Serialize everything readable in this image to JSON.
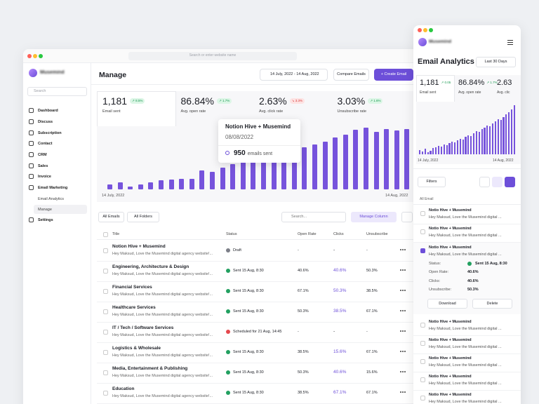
{
  "browser": {
    "address": "Search or enter website name"
  },
  "sidebar": {
    "brand": "Musemind",
    "search": "Search",
    "nav": [
      "Dashboard",
      "Discuss",
      "Subscription",
      "Contact",
      "CRM",
      "Sales",
      "Invoice",
      "Email Marketing",
      "Email Analytics",
      "Manage",
      "Settings"
    ]
  },
  "header": {
    "title": "Manage",
    "date_range": "14 July, 2022 - 14 Aug, 2022",
    "compare": "Compare Emails",
    "create": "+ Create Email"
  },
  "stats": [
    {
      "value": "1,181",
      "change": "↗ 8.5%",
      "label": "Email sent",
      "direction": "up"
    },
    {
      "value": "86.84%",
      "change": "↗ 1.7%",
      "label": "Avg. open rate",
      "direction": "up"
    },
    {
      "value": "2.63%",
      "change": "↘ 3.3%",
      "label": "Avg. click rate",
      "direction": "down"
    },
    {
      "value": "3.03%",
      "change": "↗ 1.6%",
      "label": "Unsubscribe rate",
      "direction": "up"
    }
  ],
  "chart_data": {
    "type": "bar",
    "color": "#7653dc",
    "values": [
      144,
      216,
      96,
      144,
      216,
      288,
      312,
      336,
      336,
      600,
      552,
      672,
      792,
      888,
      950,
      1032,
      1128,
      1176,
      1248,
      1320,
      1392,
      1488,
      1608,
      1704,
      1848,
      1920,
      1800,
      1872,
      1824,
      1872
    ],
    "x_start": "14 July, 2022",
    "x_end": "14 Aug, 2022",
    "tooltip": {
      "title": "Notion Hive + Musemind",
      "date": "08/08/2022",
      "value": "950",
      "unit": "emails sent"
    }
  },
  "toolbar": {
    "filter1": "All Emails",
    "filter2": "All Folders",
    "search": "Search...",
    "manage": "Manage Column"
  },
  "table": {
    "columns": [
      "Title",
      "Status",
      "Open Rate",
      "Clicks",
      "Unsubscribe"
    ],
    "rows": [
      {
        "title": "Notion Hive + Musemind",
        "desc": "Hey Maksud, Love the Musemind digital agency website!...",
        "status": "Draft",
        "kind": "draft",
        "open": "-",
        "clicks": "-",
        "unsub": "-"
      },
      {
        "title": "Engineering, Architecture & Design",
        "desc": "Hey Maksud, Love the Musemind digital agency website!...",
        "status": "Sent 15 Aug, 8:30",
        "kind": "sent",
        "open": "40.6%",
        "clicks": "40.6%",
        "unsub": "50.3%"
      },
      {
        "title": "Financial Services",
        "desc": "Hey Maksud, Love the Musemind digital agency website!...",
        "status": "Sent 15 Aug, 8:30",
        "kind": "sent",
        "open": "67.1%",
        "clicks": "50.3%",
        "unsub": "38.5%"
      },
      {
        "title": "Healthcare Services",
        "desc": "Hey Maksud, Love the Musemind digital agency website!...",
        "status": "Sent 15 Aug, 8:30",
        "kind": "sent",
        "open": "50.3%",
        "clicks": "38.5%",
        "unsub": "67.1%"
      },
      {
        "title": "IT / Tech / Software Services",
        "desc": "Hey Maksud, Love the Musemind digital agency website!...",
        "status": "Scheduled for 21 Aug, 14:45",
        "kind": "scheduled",
        "open": "-",
        "clicks": "-",
        "unsub": "-"
      },
      {
        "title": "Logistics & Wholesale",
        "desc": "Hey Maksud, Love the Musemind digital agency website!...",
        "status": "Sent 15 Aug, 8:30",
        "kind": "sent",
        "open": "38.5%",
        "clicks": "15.6%",
        "unsub": "67.1%"
      },
      {
        "title": "Media, Entertainment & Publishing",
        "desc": "Hey Maksud, Love the Musemind digital agency website!...",
        "status": "Sent 15 Aug, 8:30",
        "kind": "sent",
        "open": "50.3%",
        "clicks": "40.6%",
        "unsub": "15.6%"
      },
      {
        "title": "Education",
        "desc": "Hey Maksud, Love the Musemind digital agency website!...",
        "status": "Sent 15 Aug, 8:30",
        "kind": "sent",
        "open": "38.5%",
        "clicks": "67.1%",
        "unsub": "67.1%"
      }
    ]
  },
  "mobile": {
    "brand": "Musemind",
    "title": "Email Analytics",
    "range": "Last 30 Days",
    "stats": [
      {
        "value": "1,181",
        "change": "↗ 0.05",
        "label": "Email sent"
      },
      {
        "value": "86.84%",
        "change": "↗ 1.7%",
        "label": "Avg. open rate"
      },
      {
        "value": "2.63",
        "label": "Avg. clic"
      }
    ],
    "chart": {
      "color": "#7653dc",
      "values": [
        6,
        4,
        8,
        3,
        5,
        9,
        10,
        12,
        11,
        14,
        13,
        16,
        18,
        17,
        20,
        22,
        21,
        25,
        27,
        26,
        30,
        33,
        32,
        36,
        38,
        41,
        40,
        44,
        47,
        50,
        49,
        53,
        57,
        60,
        64,
        70
      ],
      "x_start": "14 July, 2022",
      "x_end": "14 Aug, 2022"
    },
    "filters": "Filters",
    "list_header": "All Email",
    "items": [
      {
        "title": "Notio Hive + Musemind",
        "desc": "Hey Maksud, Love the Musemind digital ..."
      },
      {
        "title": "Notio Hive + Musemind",
        "desc": "Hey Maksud, Love the Musemind digital ..."
      },
      {
        "title": "Notio Hive + Musemind",
        "desc": "Hey Maksud, Love the Musemind digital ..."
      },
      {
        "title": "Notio Hive + Musemind",
        "desc": "Hey Maksud, Love the Musemind digital ..."
      },
      {
        "title": "Notio Hive + Musemind",
        "desc": "Hey Maksud, Love the Musemind digital ..."
      },
      {
        "title": "Notio Hive + Musemind",
        "desc": "Hey Maksud, Love the Musemind digital ..."
      },
      {
        "title": "Notio Hive + Musemind",
        "desc": "Hey Maksud, Love the Musemind digital ..."
      },
      {
        "title": "Notio Hive + Musemind",
        "desc": "Hey Maksud, Love the Musemind digital ..."
      }
    ],
    "details": [
      {
        "label": "Status:",
        "value": "Sent 15 Aug, 8:30"
      },
      {
        "label": "Open Rate:",
        "value": "40.6%"
      },
      {
        "label": "Clicks:",
        "value": "40.6%"
      },
      {
        "label": "Unsubscribe:",
        "value": "50.3%"
      }
    ],
    "download": "Download",
    "delete": "Delete"
  }
}
